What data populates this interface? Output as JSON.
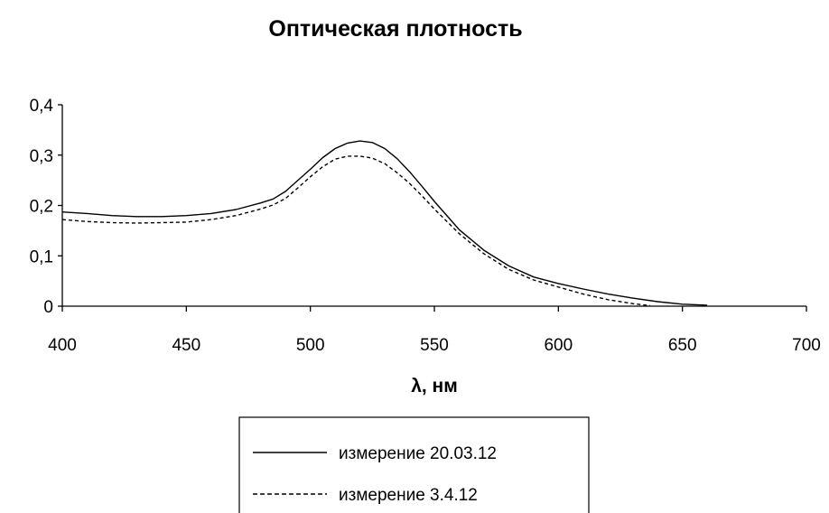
{
  "chart_data": {
    "type": "line",
    "title": "Оптическая плотность",
    "xlabel": "λ, нм",
    "ylabel": "",
    "xlim": [
      400,
      700
    ],
    "ylim": [
      0,
      0.4
    ],
    "x_ticks": [
      400,
      450,
      500,
      550,
      600,
      650,
      700
    ],
    "x_tick_labels": [
      "400",
      "450",
      "500",
      "550",
      "600",
      "650",
      "700"
    ],
    "y_ticks": [
      0,
      0.1,
      0.2,
      0.3,
      0.4
    ],
    "y_tick_labels": [
      "0",
      "0,1",
      "0,2",
      "0,3",
      "0,4"
    ],
    "grid": false,
    "legend_position": "bottom",
    "series": [
      {
        "name": "измерение 20.03.12",
        "style": "solid",
        "color": "#000000",
        "x": [
          400,
          410,
          420,
          430,
          440,
          450,
          460,
          470,
          480,
          485,
          490,
          495,
          500,
          505,
          510,
          515,
          520,
          525,
          530,
          535,
          540,
          545,
          550,
          560,
          570,
          580,
          590,
          600,
          610,
          620,
          630,
          640,
          650,
          660
        ],
        "y": [
          0.187,
          0.184,
          0.18,
          0.178,
          0.178,
          0.18,
          0.184,
          0.192,
          0.205,
          0.213,
          0.228,
          0.25,
          0.272,
          0.295,
          0.313,
          0.324,
          0.328,
          0.325,
          0.313,
          0.293,
          0.267,
          0.238,
          0.208,
          0.152,
          0.111,
          0.08,
          0.058,
          0.045,
          0.034,
          0.024,
          0.016,
          0.009,
          0.004,
          0.002
        ]
      },
      {
        "name": "измерение 3.4.12",
        "style": "dashed",
        "color": "#000000",
        "x": [
          400,
          410,
          420,
          430,
          440,
          450,
          460,
          470,
          480,
          485,
          490,
          495,
          500,
          505,
          510,
          515,
          520,
          525,
          530,
          535,
          540,
          545,
          550,
          560,
          570,
          580,
          590,
          600,
          610,
          620,
          630,
          637
        ],
        "y": [
          0.172,
          0.168,
          0.166,
          0.165,
          0.166,
          0.167,
          0.172,
          0.18,
          0.193,
          0.201,
          0.214,
          0.235,
          0.257,
          0.277,
          0.292,
          0.298,
          0.298,
          0.294,
          0.283,
          0.265,
          0.244,
          0.219,
          0.193,
          0.144,
          0.104,
          0.073,
          0.052,
          0.038,
          0.024,
          0.013,
          0.005,
          0.001
        ]
      }
    ]
  }
}
